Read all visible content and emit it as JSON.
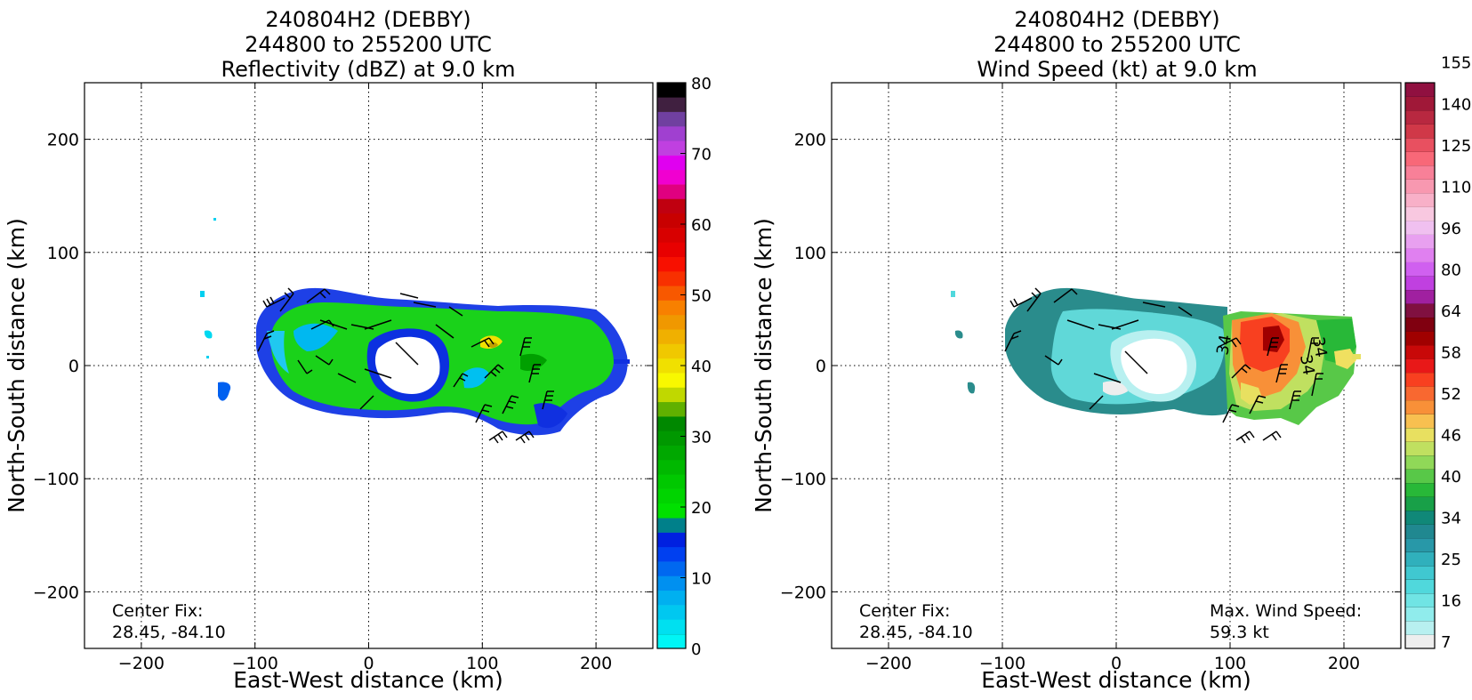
{
  "chart_data": [
    {
      "type": "heatmap",
      "title_lines": [
        "240804H2 (DEBBY)",
        "244800 to 255200 UTC",
        "Reflectivity (dBZ) at 9.0 km"
      ],
      "xlabel": "East-West distance (km)",
      "ylabel": "North-South distance (km)",
      "xlim": [
        -250,
        250
      ],
      "ylim": [
        -250,
        250
      ],
      "xticks": [
        -200,
        -100,
        0,
        100,
        200
      ],
      "yticks": [
        -200,
        -100,
        0,
        100,
        200
      ],
      "xtick_labels": [
        "−200",
        "−100",
        "0",
        "100",
        "200"
      ],
      "ytick_labels": [
        "−200",
        "−100",
        "0",
        "100",
        "200"
      ],
      "grid": true,
      "colorbar": {
        "min": 0,
        "max": 80,
        "step": 2.5,
        "tick_values": [
          0,
          10,
          20,
          30,
          40,
          50,
          60,
          70,
          80
        ],
        "tick_labels": [
          "0",
          "10",
          "20",
          "30",
          "40",
          "50",
          "60",
          "70",
          "80"
        ],
        "colors": [
          "#00f5f5",
          "#00e0f0",
          "#00c8f0",
          "#00b0f0",
          "#0090f0",
          "#0068f0",
          "#0040f0",
          "#0020e0",
          "#00808a",
          "#00e000",
          "#00d400",
          "#00c800",
          "#00b800",
          "#00a800",
          "#009800",
          "#008800",
          "#60b000",
          "#c0d800",
          "#f8f800",
          "#f0e000",
          "#f0c800",
          "#f0b000",
          "#f09800",
          "#f88000",
          "#f85800",
          "#f83000",
          "#f81000",
          "#e80000",
          "#d80000",
          "#c80000",
          "#c00010",
          "#e00080",
          "#f000d0",
          "#e000f0",
          "#c040e0",
          "#a040d0",
          "#7040a0",
          "#402040",
          "#000000"
        ]
      },
      "annotation": [
        "Center Fix:",
        "28.45, -84.10"
      ]
    },
    {
      "type": "heatmap",
      "title_lines": [
        "240804H2 (DEBBY)",
        "244800 to 255200 UTC",
        "Wind Speed (kt) at 9.0 km"
      ],
      "xlabel": "East-West distance (km)",
      "ylabel": "North-South distance (km)",
      "xlim": [
        -250,
        250
      ],
      "ylim": [
        -250,
        250
      ],
      "xticks": [
        -200,
        -100,
        0,
        100,
        200
      ],
      "yticks": [
        -200,
        -100,
        0,
        100,
        200
      ],
      "xtick_labels": [
        "−200",
        "−100",
        "0",
        "100",
        "200"
      ],
      "ytick_labels": [
        "−200",
        "−100",
        "0",
        "100",
        "200"
      ],
      "grid": true,
      "colorbar": {
        "tick_labels": [
          "7",
          "16",
          "25",
          "34",
          "40",
          "46",
          "52",
          "58",
          "64",
          "80",
          "96",
          "110",
          "125",
          "140",
          "155"
        ],
        "colors": [
          "#eeeeee",
          "#b8f0f0",
          "#90ecec",
          "#70e4e4",
          "#50d8dc",
          "#40c8d0",
          "#30b0bc",
          "#2898a8",
          "#208890",
          "#108878",
          "#18a048",
          "#28b838",
          "#58c848",
          "#90d858",
          "#c0e060",
          "#e8e060",
          "#f8c050",
          "#f89038",
          "#f86830",
          "#f84020",
          "#e81818",
          "#c80808",
          "#a00000",
          "#800010",
          "#801040",
          "#a020a0",
          "#c040e0",
          "#d060f0",
          "#e080f0",
          "#e8a0f0",
          "#f0c0f0",
          "#f8c8e0",
          "#f8b0c8",
          "#f898b0",
          "#f88098",
          "#f86878",
          "#e85060",
          "#d03848",
          "#b82840",
          "#a01838",
          "#901040"
        ],
        "label_every": 3
      },
      "annotation": [
        "Center Fix:",
        "28.45, -84.10"
      ],
      "annotation_right": [
        "Max. Wind Speed:",
        "59.3 kt"
      ],
      "barb_labels": [
        "34",
        "34",
        "34"
      ]
    }
  ]
}
